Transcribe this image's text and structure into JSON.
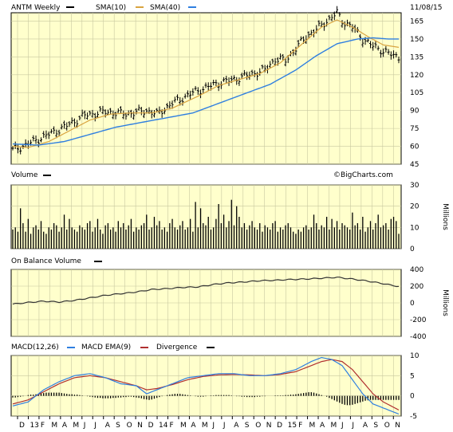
{
  "header": {
    "symbol": "ANTM Weekly",
    "sma10_label": "SMA(10)",
    "sma40_label": "SMA(40)",
    "date": "11/08/15",
    "watermark": "©BigCharts.com"
  },
  "colors": {
    "panel_bg": "#ffffcc",
    "grid": "#c8c8a0",
    "price_bar": "#000000",
    "sma10": "#d9a440",
    "sma40": "#2f7fe0",
    "volume_bar": "#000000",
    "obv": "#333333",
    "macd": "#2f7fe0",
    "macd_ema": "#b03030",
    "divergence": "#000000"
  },
  "chart_data": [
    {
      "type": "line",
      "title": "ANTM Weekly",
      "y_ticks": [
        45,
        60,
        75,
        90,
        105,
        120,
        135,
        150,
        165
      ],
      "ylim": [
        45,
        172
      ],
      "grid": true,
      "series": [
        {
          "name": "ANTM Weekly",
          "style": "ohlc",
          "anchors": [
            [
              0,
              57
            ],
            [
              5,
              61
            ],
            [
              12,
              68
            ],
            [
              20,
              76
            ],
            [
              28,
              86
            ],
            [
              36,
              89
            ],
            [
              44,
              87
            ],
            [
              52,
              90
            ],
            [
              56,
              87
            ],
            [
              62,
              96
            ],
            [
              70,
              105
            ],
            [
              76,
              110
            ],
            [
              80,
              113
            ],
            [
              86,
              116
            ],
            [
              92,
              120
            ],
            [
              98,
              124
            ],
            [
              102,
              133
            ],
            [
              106,
              132
            ],
            [
              110,
              142
            ],
            [
              114,
              152
            ],
            [
              118,
              158
            ],
            [
              122,
              165
            ],
            [
              126,
              172
            ],
            [
              128,
              165
            ],
            [
              132,
              160
            ],
            [
              136,
              150
            ],
            [
              140,
              144
            ],
            [
              144,
              140
            ],
            [
              148,
              136
            ],
            [
              150,
              135
            ]
          ]
        },
        {
          "name": "SMA(10)",
          "anchors": [
            [
              0,
              60
            ],
            [
              6,
              59
            ],
            [
              14,
              64
            ],
            [
              22,
              73
            ],
            [
              30,
              82
            ],
            [
              38,
              87
            ],
            [
              46,
              88
            ],
            [
              54,
              88
            ],
            [
              62,
              92
            ],
            [
              72,
              102
            ],
            [
              80,
              111
            ],
            [
              88,
              116
            ],
            [
              96,
              121
            ],
            [
              104,
              130
            ],
            [
              112,
              145
            ],
            [
              120,
              160
            ],
            [
              126,
              166
            ],
            [
              132,
              160
            ],
            [
              138,
              152
            ],
            [
              144,
              145
            ],
            [
              150,
              143
            ]
          ]
        },
        {
          "name": "SMA(40)",
          "anchors": [
            [
              0,
              62
            ],
            [
              10,
              61
            ],
            [
              20,
              64
            ],
            [
              30,
              70
            ],
            [
              40,
              76
            ],
            [
              50,
              80
            ],
            [
              60,
              84
            ],
            [
              70,
              88
            ],
            [
              80,
              96
            ],
            [
              90,
              104
            ],
            [
              100,
              112
            ],
            [
              110,
              124
            ],
            [
              118,
              136
            ],
            [
              126,
              146
            ],
            [
              134,
              150
            ],
            [
              140,
              151
            ],
            [
              146,
              150
            ],
            [
              150,
              150
            ]
          ]
        }
      ]
    },
    {
      "type": "bar",
      "title": "Volume",
      "ylabel": "Millions",
      "y_ticks": [
        0,
        10,
        20,
        30
      ],
      "ylim": [
        0,
        30
      ],
      "series": [
        {
          "name": "Volume",
          "values": [
            9,
            10,
            8,
            19,
            12,
            8,
            14,
            7,
            10,
            11,
            9,
            13,
            8,
            7,
            10,
            9,
            12,
            11,
            8,
            10,
            16,
            9,
            14,
            10,
            9,
            8,
            11,
            10,
            9,
            12,
            13,
            8,
            10,
            14,
            9,
            7,
            11,
            12,
            9,
            10,
            8,
            13,
            10,
            12,
            9,
            11,
            14,
            8,
            10,
            9,
            11,
            12,
            16,
            9,
            10,
            15,
            11,
            13,
            9,
            10,
            8,
            12,
            14,
            10,
            9,
            11,
            13,
            9,
            10,
            14,
            8,
            22,
            10,
            19,
            12,
            11,
            15,
            9,
            10,
            14,
            21,
            12,
            16,
            10,
            13,
            23,
            11,
            20,
            15,
            10,
            12,
            9,
            11,
            13,
            10,
            9,
            12,
            8,
            11,
            10,
            9,
            12,
            13,
            8,
            10,
            9,
            11,
            12,
            10,
            8,
            7,
            9,
            8,
            10,
            11,
            9,
            10,
            16,
            12,
            9,
            11,
            10,
            15,
            9,
            14,
            10,
            13,
            9,
            12,
            11,
            10,
            9,
            17,
            11,
            12,
            9,
            15,
            8,
            10,
            13,
            9,
            12,
            16,
            10,
            11,
            12,
            9,
            14,
            15,
            13,
            7,
            5
          ]
        }
      ]
    },
    {
      "type": "line",
      "title": "On Balance Volume",
      "ylabel": "Millions",
      "y_ticks": [
        -400,
        -200,
        0,
        200,
        400
      ],
      "ylim": [
        -400,
        400
      ],
      "series": [
        {
          "name": "On Balance Volume",
          "anchors": [
            [
              0,
              -15
            ],
            [
              6,
              5
            ],
            [
              12,
              20
            ],
            [
              18,
              10
            ],
            [
              24,
              30
            ],
            [
              30,
              60
            ],
            [
              36,
              90
            ],
            [
              42,
              110
            ],
            [
              48,
              130
            ],
            [
              54,
              160
            ],
            [
              60,
              170
            ],
            [
              66,
              185
            ],
            [
              72,
              190
            ],
            [
              78,
              220
            ],
            [
              84,
              240
            ],
            [
              90,
              250
            ],
            [
              96,
              265
            ],
            [
              102,
              270
            ],
            [
              108,
              280
            ],
            [
              114,
              285
            ],
            [
              120,
              295
            ],
            [
              126,
              305
            ],
            [
              132,
              285
            ],
            [
              138,
              260
            ],
            [
              144,
              230
            ],
            [
              150,
              195
            ]
          ]
        }
      ]
    },
    {
      "type": "line",
      "title": "MACD",
      "y_ticks": [
        -5,
        0,
        5,
        10
      ],
      "ylim": [
        -5,
        10
      ],
      "series": [
        {
          "name": "MACD(12,26)",
          "anchors": [
            [
              0,
              -2.5
            ],
            [
              6,
              -1.5
            ],
            [
              12,
              1.5
            ],
            [
              18,
              3.5
            ],
            [
              24,
              5
            ],
            [
              30,
              5.5
            ],
            [
              36,
              4.5
            ],
            [
              42,
              3
            ],
            [
              48,
              2.5
            ],
            [
              52,
              0.5
            ],
            [
              56,
              1.5
            ],
            [
              62,
              3
            ],
            [
              68,
              4.5
            ],
            [
              74,
              5
            ],
            [
              80,
              5.5
            ],
            [
              86,
              5.5
            ],
            [
              92,
              5
            ],
            [
              98,
              5
            ],
            [
              104,
              5.5
            ],
            [
              110,
              6.5
            ],
            [
              116,
              8.5
            ],
            [
              120,
              9.5
            ],
            [
              124,
              9
            ],
            [
              128,
              7.5
            ],
            [
              132,
              4
            ],
            [
              136,
              0.5
            ],
            [
              140,
              -2
            ],
            [
              144,
              -3
            ],
            [
              150,
              -4.5
            ]
          ]
        },
        {
          "name": "MACD EMA(9)",
          "anchors": [
            [
              0,
              -2
            ],
            [
              6,
              -1
            ],
            [
              12,
              1
            ],
            [
              18,
              3
            ],
            [
              24,
              4.5
            ],
            [
              30,
              5
            ],
            [
              36,
              4.5
            ],
            [
              42,
              3.5
            ],
            [
              48,
              2.5
            ],
            [
              52,
              1.5
            ],
            [
              56,
              1.8
            ],
            [
              62,
              2.8
            ],
            [
              68,
              4
            ],
            [
              74,
              4.8
            ],
            [
              80,
              5.2
            ],
            [
              86,
              5.3
            ],
            [
              92,
              5.2
            ],
            [
              98,
              5
            ],
            [
              104,
              5.3
            ],
            [
              110,
              6
            ],
            [
              116,
              7.5
            ],
            [
              120,
              8.5
            ],
            [
              124,
              9
            ],
            [
              128,
              8.5
            ],
            [
              132,
              6.5
            ],
            [
              136,
              3.5
            ],
            [
              140,
              0.5
            ],
            [
              144,
              -1.5
            ],
            [
              150,
              -3.5
            ]
          ]
        },
        {
          "name": "Divergence",
          "style": "histogram",
          "values": [
            -0.4,
            -0.4,
            -0.3,
            -0.2,
            -0.1,
            0,
            0.2,
            0.3,
            0.3,
            0.4,
            0.5,
            0.6,
            0.7,
            0.8,
            0.8,
            0.8,
            0.8,
            0.8,
            0.8,
            0.7,
            0.6,
            0.5,
            0.4,
            0.4,
            0.3,
            0.3,
            0.2,
            0.1,
            0,
            -0.1,
            -0.2,
            -0.3,
            -0.4,
            -0.5,
            -0.5,
            -0.6,
            -0.6,
            -0.6,
            -0.6,
            -0.5,
            -0.5,
            -0.4,
            -0.4,
            -0.3,
            -0.3,
            -0.2,
            -0.2,
            -0.3,
            -0.4,
            -0.5,
            -0.6,
            -0.8,
            -0.9,
            -1,
            -0.9,
            -0.7,
            -0.5,
            -0.3,
            -0.1,
            0,
            0.2,
            0.3,
            0.4,
            0.5,
            0.5,
            0.5,
            0.4,
            0.3,
            0.2,
            0.1,
            0,
            -0.1,
            -0.2,
            -0.2,
            -0.2,
            -0.1,
            0,
            0.1,
            0.1,
            0.2,
            0.2,
            0.2,
            0.2,
            0.2,
            0.2,
            0.1,
            0,
            -0.1,
            -0.1,
            -0.2,
            -0.2,
            -0.3,
            -0.3,
            -0.3,
            -0.3,
            -0.2,
            -0.2,
            -0.1,
            -0.1,
            0,
            0,
            0,
            0.1,
            0.1,
            0.1,
            0.1,
            0.2,
            0.2,
            0.3,
            0.3,
            0.4,
            0.5,
            0.6,
            0.7,
            0.8,
            0.9,
            0.9,
            0.8,
            0.6,
            0.4,
            0.2,
            0,
            -0.2,
            -0.5,
            -0.8,
            -1.1,
            -1.4,
            -1.7,
            -2,
            -2.2,
            -2.3,
            -2.3,
            -2.2,
            -2,
            -1.8,
            -1.6,
            -1.4,
            -1.2,
            -1.1,
            -1,
            -1,
            -1,
            -1,
            -1,
            -1,
            -1,
            -1,
            -1,
            -1,
            -1,
            -1,
            -1
          ]
        }
      ]
    }
  ],
  "x_axis": {
    "month_labels": [
      "D",
      "13",
      "F",
      "M",
      "A",
      "M",
      "J",
      "J",
      "A",
      "S",
      "O",
      "N",
      "D",
      "14",
      "F",
      "M",
      "A",
      "M",
      "J",
      "J",
      "A",
      "S",
      "O",
      "N",
      "D",
      "15",
      "F",
      "M",
      "A",
      "M",
      "J",
      "J",
      "A",
      "S",
      "O",
      "N"
    ]
  }
}
